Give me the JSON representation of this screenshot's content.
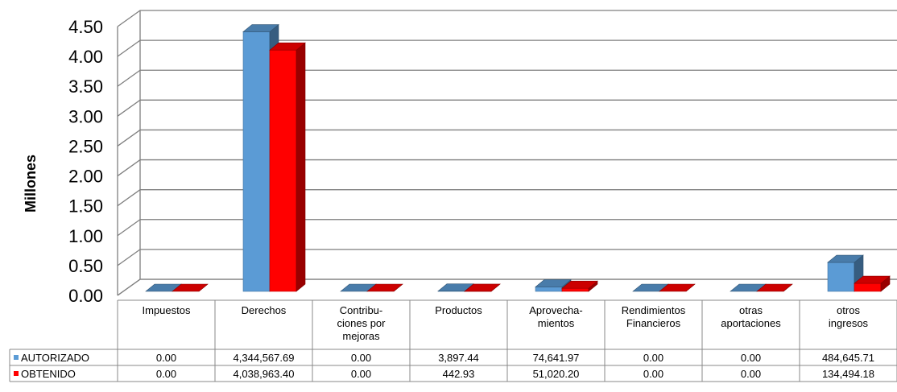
{
  "chart_data": {
    "type": "bar",
    "style": "3d-clustered-column-with-data-table",
    "title": "",
    "xlabel": "",
    "ylabel": "Millones",
    "ylim": [
      0,
      4.5
    ],
    "ytick_labels": [
      "0.00",
      "0.50",
      "1.00",
      "1.50",
      "2.00",
      "2.50",
      "3.00",
      "3.50",
      "4.00",
      "4.50"
    ],
    "categories": [
      [
        "Impuestos"
      ],
      [
        "Derechos"
      ],
      [
        "Contribu-",
        "ciones por",
        "mejoras"
      ],
      [
        "Productos"
      ],
      [
        "Aprovecha-",
        "mientos"
      ],
      [
        "Rendimientos",
        "Financieros"
      ],
      [
        "otras",
        "aportaciones"
      ],
      [
        "otros",
        "ingresos"
      ]
    ],
    "series": [
      {
        "name": "AUTORIZADO",
        "color": "#5b9bd5",
        "values": [
          0,
          4.34456769,
          0,
          0.00389744,
          0.07464197,
          0,
          0,
          0.48464571
        ],
        "table_labels": [
          "0.00",
          "4,344,567.69",
          "0.00",
          "3,897.44",
          "74,641.97",
          "0.00",
          "0.00",
          "484,645.71"
        ]
      },
      {
        "name": "OBTENIDO",
        "color": "#ff0000",
        "values": [
          0,
          4.0389634,
          0,
          0.00044293,
          0.0510202,
          0,
          0,
          0.13449418
        ],
        "table_labels": [
          "0.00",
          "4,038,963.40",
          "0.00",
          "442.93",
          "51,020.20",
          "0.00",
          "0.00",
          "134,494.18"
        ]
      }
    ],
    "grid": true,
    "legend": "data-table"
  }
}
